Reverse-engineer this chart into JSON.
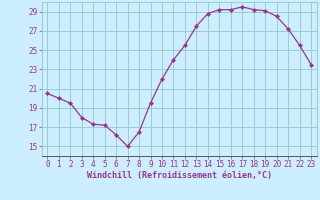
{
  "x": [
    0,
    1,
    2,
    3,
    4,
    5,
    6,
    7,
    8,
    9,
    10,
    11,
    12,
    13,
    14,
    15,
    16,
    17,
    18,
    19,
    20,
    21,
    22,
    23
  ],
  "y": [
    20.5,
    20.0,
    19.5,
    18.0,
    17.3,
    17.2,
    16.2,
    15.0,
    16.5,
    19.5,
    22.0,
    24.0,
    25.5,
    27.5,
    28.8,
    29.2,
    29.2,
    29.5,
    29.2,
    29.1,
    28.5,
    27.2,
    25.5,
    23.5
  ],
  "line_color": "#993399",
  "marker": "D",
  "marker_size": 2,
  "bg_color": "#cceeff",
  "grid_color": "#99cccc",
  "xlabel": "Windchill (Refroidissement éolien,°C)",
  "xlabel_color": "#993399",
  "tick_color": "#993399",
  "label_color": "#993399",
  "ylim": [
    14,
    30
  ],
  "yticks": [
    15,
    17,
    19,
    21,
    23,
    25,
    27,
    29
  ],
  "xlim": [
    -0.5,
    23.5
  ],
  "xticks": [
    0,
    1,
    2,
    3,
    4,
    5,
    6,
    7,
    8,
    9,
    10,
    11,
    12,
    13,
    14,
    15,
    16,
    17,
    18,
    19,
    20,
    21,
    22,
    23
  ]
}
